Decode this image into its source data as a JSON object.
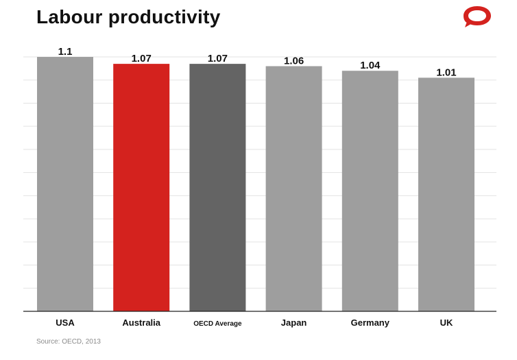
{
  "title": "Labour productivity",
  "source": "Source: OECD, 2013",
  "colors": {
    "default_bar": "#9e9e9e",
    "highlight_bar": "#d4221e",
    "average_bar": "#646464",
    "logo": "#d4221e"
  },
  "logo_icon": "speech-bubble-logo-icon",
  "chart_data": {
    "type": "bar",
    "title": "Labour productivity",
    "xlabel": "",
    "ylabel": "",
    "categories": [
      "USA",
      "Australia",
      "OECD Average",
      "Japan",
      "Germany",
      "UK"
    ],
    "values": [
      1.1,
      1.07,
      1.07,
      1.06,
      1.04,
      1.01
    ],
    "value_labels": [
      "1.1",
      "1.07",
      "1.07",
      "1.06",
      "1.04",
      "1.01"
    ],
    "bar_colors": [
      "#9e9e9e",
      "#d4221e",
      "#646464",
      "#9e9e9e",
      "#9e9e9e",
      "#9e9e9e"
    ],
    "ylim": [
      0,
      1.1
    ],
    "grid": true,
    "legend": "none"
  }
}
